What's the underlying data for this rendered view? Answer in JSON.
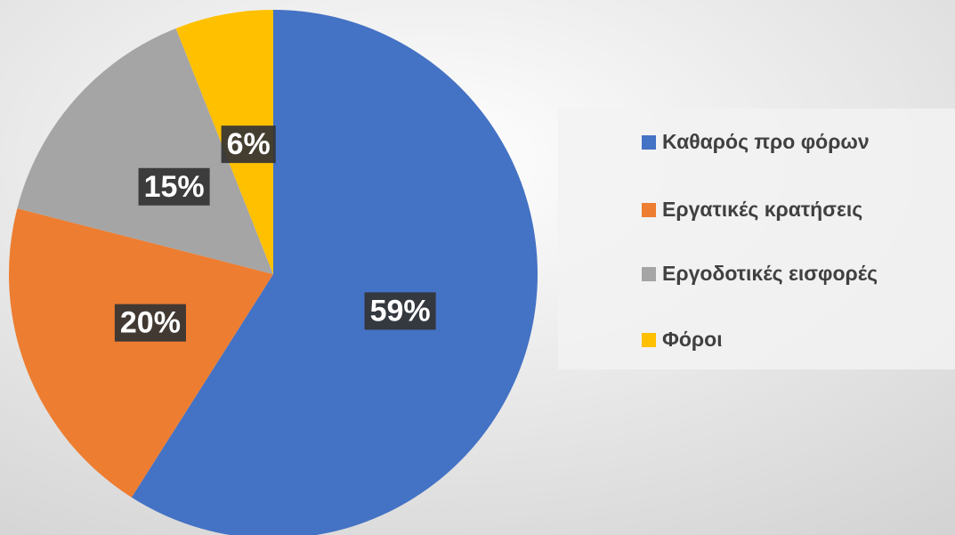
{
  "chart_data": {
    "type": "pie",
    "categories": [
      "Καθαρός προ φόρων",
      "Εργατικές κρατήσεις",
      "Εργοδοτικές εισφορές",
      "Φόροι"
    ],
    "values": [
      59,
      20,
      15,
      6
    ],
    "value_labels": [
      "59%",
      "20%",
      "15%",
      "6%"
    ],
    "colors": [
      "#4472c4",
      "#ed7d31",
      "#a5a5a5",
      "#ffc000"
    ],
    "legend": "right"
  }
}
